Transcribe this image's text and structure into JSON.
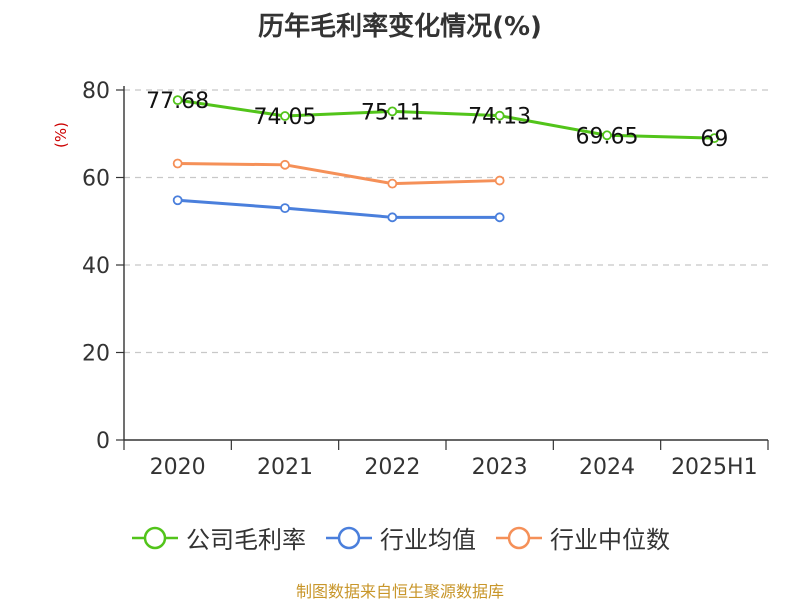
{
  "title": "历年毛利率变化情况(%)",
  "ylabel": "(%)",
  "source": "制图数据来自恒生聚源数据库",
  "chart_data": {
    "type": "line",
    "title": "历年毛利率变化情况(%)",
    "ylabel": "(%)",
    "xlabel": "",
    "categories": [
      "2020",
      "2021",
      "2022",
      "2023",
      "2024",
      "2025H1"
    ],
    "ylim": [
      0,
      80
    ],
    "yticks": [
      0,
      20,
      40,
      60,
      80
    ],
    "grid": true,
    "legend_position": "bottom",
    "series": [
      {
        "name": "公司毛利率",
        "color": "#52c41a",
        "values": [
          77.68,
          74.05,
          75.11,
          74.13,
          69.65,
          69
        ],
        "labels": [
          "77.68",
          "74.05",
          "75.11",
          "74.13",
          "69.65",
          "69"
        ]
      },
      {
        "name": "行业均值",
        "color": "#4a7fdc",
        "values": [
          54.8,
          53.0,
          50.9,
          50.9,
          null,
          null
        ]
      },
      {
        "name": "行业中位数",
        "color": "#f59058",
        "values": [
          63.2,
          62.9,
          58.6,
          59.3,
          null,
          null
        ]
      }
    ]
  }
}
